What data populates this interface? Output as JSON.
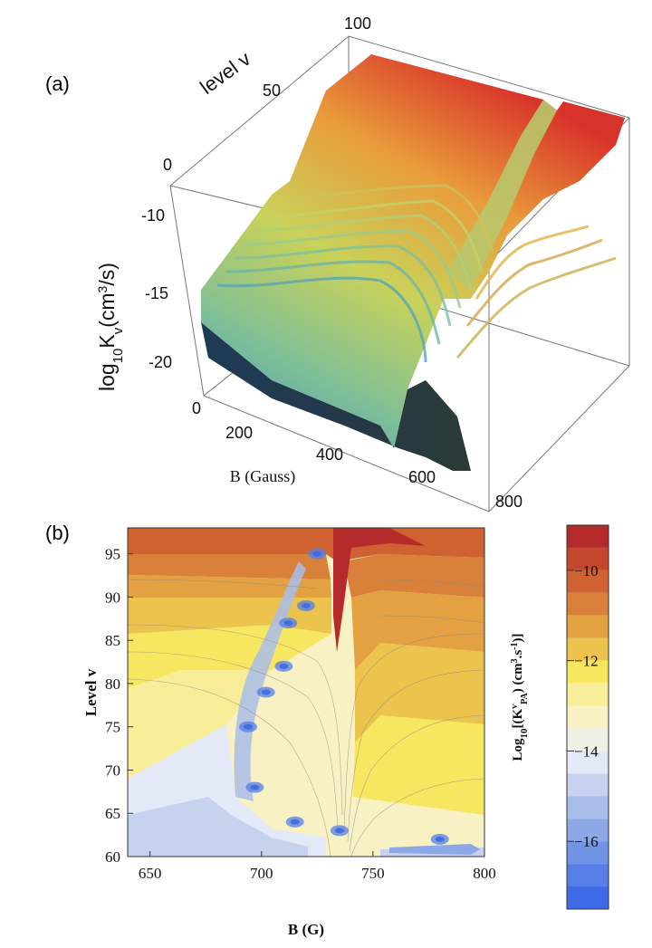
{
  "panels": {
    "a_label": "(a)",
    "b_label": "(b)"
  },
  "chart_data": [
    {
      "type": "surface3d",
      "panel": "(a)",
      "title": "",
      "xlabel": "B (Gauss)",
      "ylabel": "level v",
      "zlabel_main": "log",
      "zlabel_sub": "10",
      "zlabel_rest": "K",
      "zlabel_sub2": "v",
      "zlabel_tail": "(cm",
      "zlabel_sup": "3",
      "zlabel_end": "/s)",
      "x_ticks": [
        "200",
        "400",
        "600",
        "800"
      ],
      "y_ticks": [
        "0",
        "50",
        "100"
      ],
      "z_ticks": [
        "-10",
        "-15",
        "-20"
      ],
      "z_range": [
        -22,
        -8
      ],
      "x_range": [
        0,
        900
      ],
      "y_range": [
        0,
        100
      ],
      "resonance_B": 740
    },
    {
      "type": "contour",
      "panel": "(b)",
      "xlabel": "B (G)",
      "ylabel": "Level v",
      "x_ticks": [
        "650",
        "700",
        "750",
        "800"
      ],
      "y_ticks": [
        "60",
        "65",
        "70",
        "75",
        "80",
        "85",
        "90",
        "95"
      ],
      "xlim": [
        640,
        800
      ],
      "ylim": [
        60,
        98
      ],
      "colorbar": {
        "label_main": "Log",
        "label_sub": "10",
        "label_rest": "[(K",
        "label_sup": "v",
        "label_sub2": "PA",
        "label_end": ") (cm",
        "label_sup2": "3",
        "label_end2": ".s",
        "label_sup3": "-1",
        "label_close": ")]",
        "ticks": [
          "−10",
          "−12",
          "−14",
          "−16"
        ],
        "tick_values": [
          -10,
          -12,
          -14,
          -16
        ],
        "range": [
          -17.5,
          -9
        ],
        "levels": [
          {
            "value": -9.25,
            "color": "#b52a2a"
          },
          {
            "value": -9.75,
            "color": "#c4472c"
          },
          {
            "value": -10.25,
            "color": "#d06232"
          },
          {
            "value": -10.75,
            "color": "#d9813a"
          },
          {
            "value": -11.25,
            "color": "#e3a142"
          },
          {
            "value": -11.75,
            "color": "#ecc34d"
          },
          {
            "value": -12.25,
            "color": "#f6e660"
          },
          {
            "value": -12.75,
            "color": "#f8ee9a"
          },
          {
            "value": -13.25,
            "color": "#f8f1c3"
          },
          {
            "value": -13.75,
            "color": "#eef1e6"
          },
          {
            "value": -14.25,
            "color": "#e3e9f6"
          },
          {
            "value": -14.75,
            "color": "#c6d2ee"
          },
          {
            "value": -15.25,
            "color": "#a9bde9"
          },
          {
            "value": -15.75,
            "color": "#8da8e6"
          },
          {
            "value": -16.25,
            "color": "#7193e6"
          },
          {
            "value": -16.75,
            "color": "#557ee6"
          },
          {
            "value": -17.25,
            "color": "#3d6ae6"
          }
        ]
      },
      "resonance_B": 737,
      "cold_spots": [
        {
          "B": 697,
          "v": 68
        },
        {
          "B": 694,
          "v": 75
        },
        {
          "B": 702,
          "v": 79
        },
        {
          "B": 710,
          "v": 82
        },
        {
          "B": 720,
          "v": 89
        },
        {
          "B": 712,
          "v": 87
        },
        {
          "B": 725,
          "v": 95
        },
        {
          "B": 715,
          "v": 64
        },
        {
          "B": 735,
          "v": 63
        },
        {
          "B": 780,
          "v": 62
        }
      ]
    }
  ]
}
